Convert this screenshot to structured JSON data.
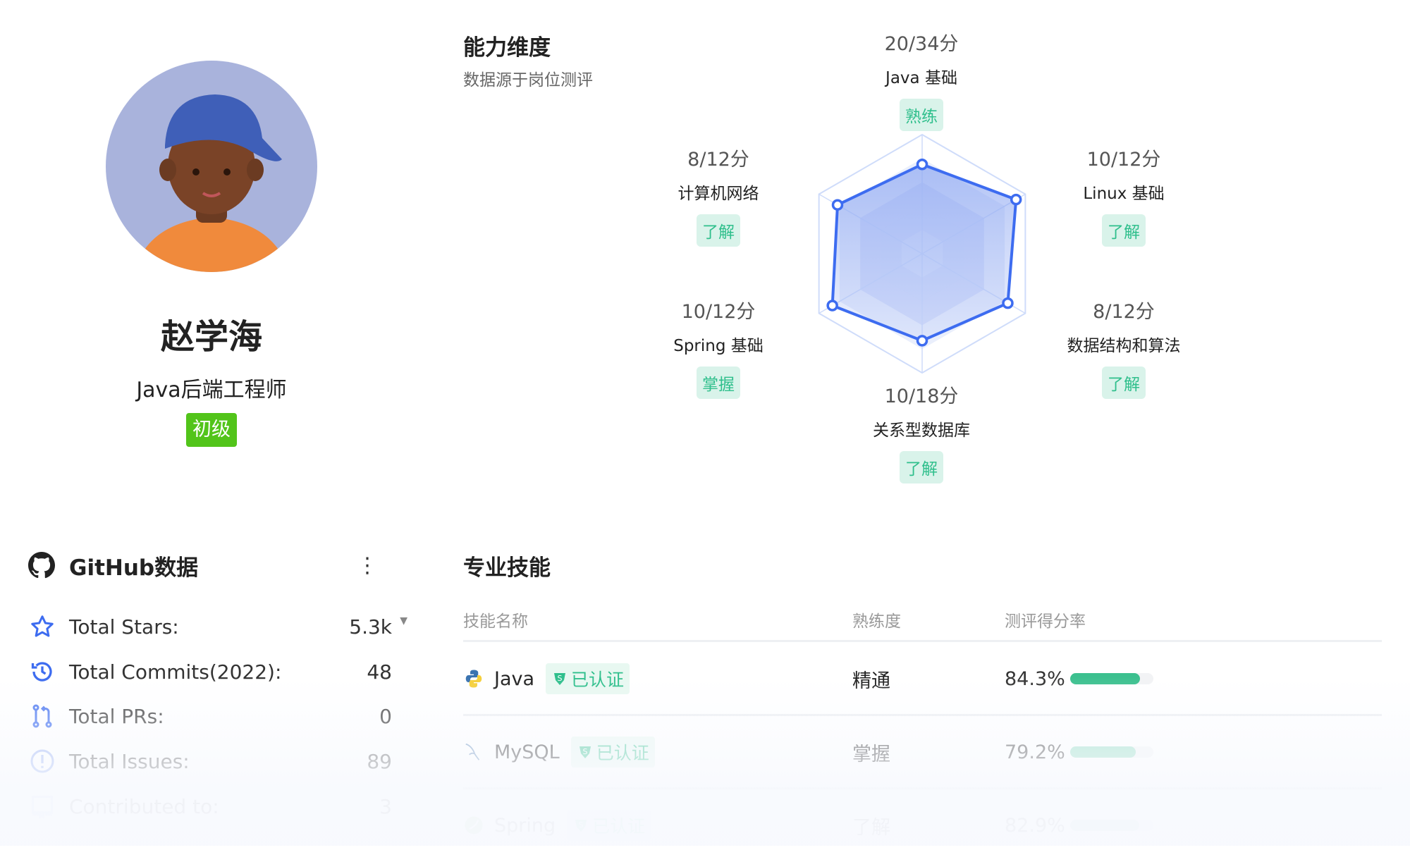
{
  "profile": {
    "name": "赵学海",
    "title": "Java后端工程师",
    "level": "初级"
  },
  "radar": {
    "title": "能力维度",
    "subtitle": "数据源于岗位测评"
  },
  "chart_data": {
    "type": "radar",
    "axes": [
      {
        "name": "Java 基础",
        "score": "20/34分",
        "level": "熟练"
      },
      {
        "name": "Linux 基础",
        "score": "10/12分",
        "level": "了解"
      },
      {
        "name": "数据结构和算法",
        "score": "8/12分",
        "level": "了解"
      },
      {
        "name": "关系型数据库",
        "score": "10/18分",
        "level": "了解"
      },
      {
        "name": "Spring 基础",
        "score": "10/12分",
        "level": "掌握"
      },
      {
        "name": "计算机网络",
        "score": "8/12分",
        "level": "了解"
      }
    ],
    "values": [
      0.75,
      0.91,
      0.83,
      0.73,
      0.87,
      0.82
    ],
    "range": [
      0,
      1
    ],
    "colors": {
      "line": "#3d6cf0",
      "fill": "#7f9cf0",
      "grid": "#cfdcfa"
    }
  },
  "github": {
    "title": "GitHub数据",
    "rows": [
      {
        "label": "Total Stars:",
        "value": "5.3k",
        "icon": "star-icon"
      },
      {
        "label": "Total Commits(2022):",
        "value": "48",
        "icon": "history-icon"
      },
      {
        "label": "Total PRs:",
        "value": "0",
        "icon": "pull-request-icon"
      },
      {
        "label": "Total Issues:",
        "value": "89",
        "icon": "issue-icon"
      },
      {
        "label": "Contributed to:",
        "value": "3",
        "icon": "repo-icon"
      }
    ]
  },
  "skills": {
    "title": "专业技能",
    "headers": [
      "技能名称",
      "熟练度",
      "测评得分率"
    ],
    "cert_label": "已认证",
    "rows": [
      {
        "name": "Java",
        "level": "精通",
        "rate": "84.3%",
        "fill": 0.843,
        "icon": "python-icon"
      },
      {
        "name": "MySQL",
        "level": "掌握",
        "rate": "79.2%",
        "fill": 0.792,
        "icon": "mysql-dolphin-icon"
      },
      {
        "name": "Spring",
        "level": "了解",
        "rate": "82.9%",
        "fill": 0.829,
        "icon": "spring-icon"
      }
    ]
  },
  "accent": "#3d6cf0",
  "success": "#2fbf8c"
}
